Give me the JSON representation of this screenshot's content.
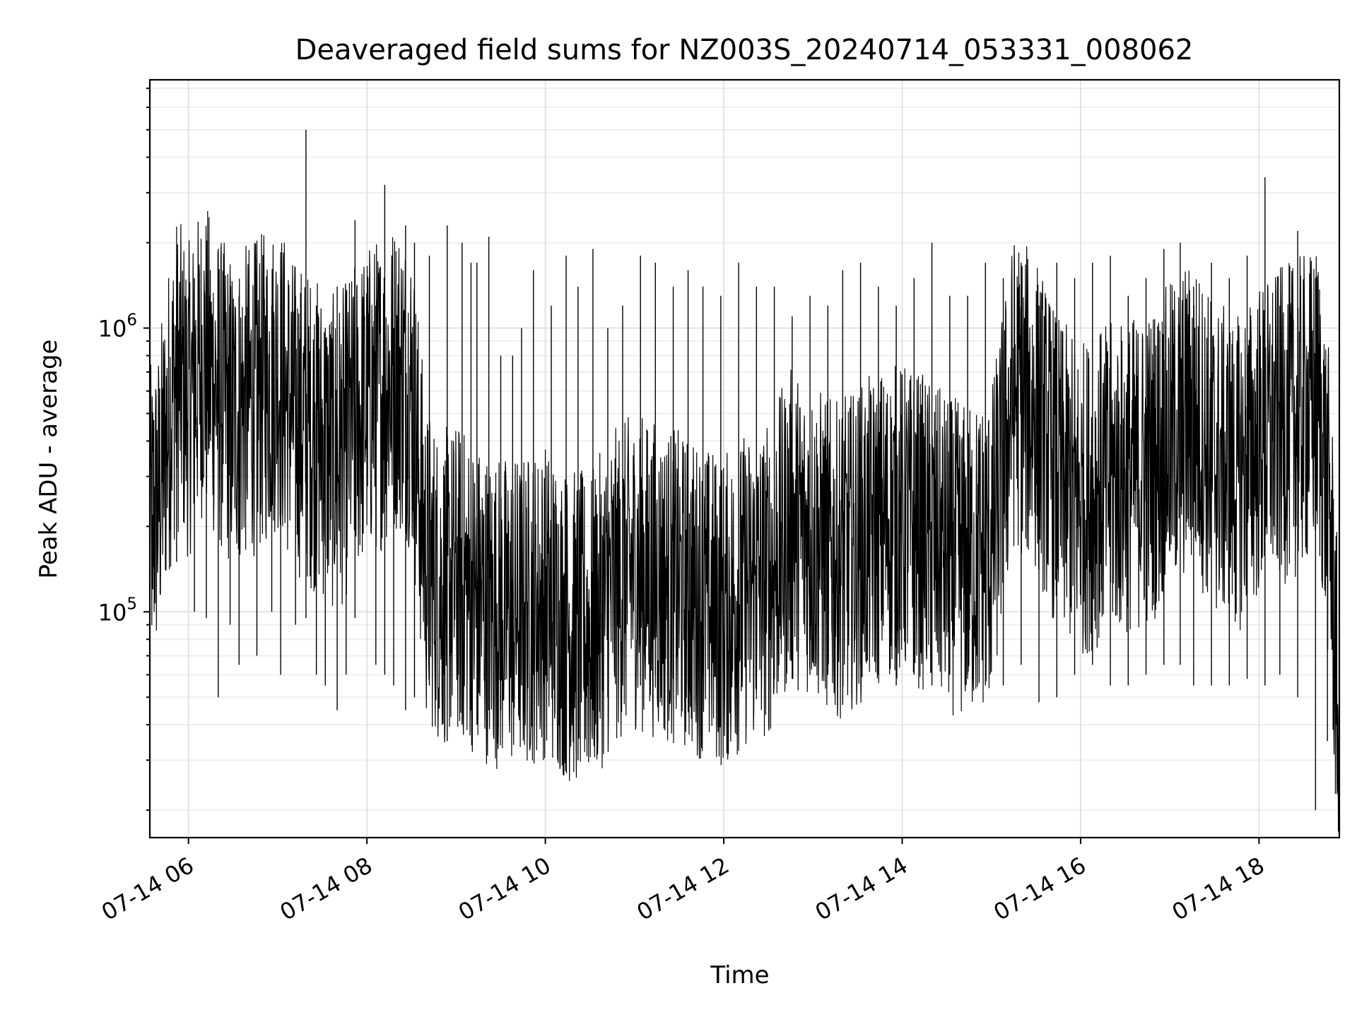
{
  "chart_data": {
    "type": "line",
    "title": "Deaveraged field sums for NZ003S_20240714_053331_008062",
    "xlabel": "Time",
    "ylabel": "Peak ADU - average",
    "y_scale": "log",
    "ylim": [
      16000,
      7500000
    ],
    "xlim": [
      "2024-07-14 05:34",
      "2024-07-14 18:54"
    ],
    "grid": true,
    "line_color": "#000000",
    "x_ticks": [
      {
        "value": "2024-07-14 06:00",
        "label": "07-14 06"
      },
      {
        "value": "2024-07-14 08:00",
        "label": "07-14 08"
      },
      {
        "value": "2024-07-14 10:00",
        "label": "07-14 10"
      },
      {
        "value": "2024-07-14 12:00",
        "label": "07-14 12"
      },
      {
        "value": "2024-07-14 14:00",
        "label": "07-14 14"
      },
      {
        "value": "2024-07-14 16:00",
        "label": "07-14 16"
      },
      {
        "value": "2024-07-14 18:00",
        "label": "07-14 18"
      }
    ],
    "y_ticks": [
      {
        "value": 100000,
        "base": "10",
        "exp": "5"
      },
      {
        "value": 1000000,
        "base": "10",
        "exp": "6"
      }
    ],
    "series": [
      {
        "x": [
          "2024-07-14 05:34",
          "2024-07-14 05:40",
          "2024-07-14 05:46",
          "2024-07-14 05:52",
          "2024-07-14 06:00",
          "2024-07-14 06:10",
          "2024-07-14 06:20",
          "2024-07-14 06:30",
          "2024-07-14 06:40",
          "2024-07-14 06:50",
          "2024-07-14 07:00",
          "2024-07-14 07:10",
          "2024-07-14 07:20",
          "2024-07-14 07:30",
          "2024-07-14 07:40",
          "2024-07-14 07:50",
          "2024-07-14 08:00",
          "2024-07-14 08:10",
          "2024-07-14 08:20",
          "2024-07-14 08:30",
          "2024-07-14 08:40",
          "2024-07-14 08:50",
          "2024-07-14 09:00",
          "2024-07-14 09:15",
          "2024-07-14 09:30",
          "2024-07-14 09:45",
          "2024-07-14 10:00",
          "2024-07-14 10:15",
          "2024-07-14 10:30",
          "2024-07-14 10:45",
          "2024-07-14 11:00",
          "2024-07-14 11:15",
          "2024-07-14 11:30",
          "2024-07-14 11:45",
          "2024-07-14 12:00",
          "2024-07-14 12:15",
          "2024-07-14 12:30",
          "2024-07-14 12:45",
          "2024-07-14 13:00",
          "2024-07-14 13:15",
          "2024-07-14 13:30",
          "2024-07-14 13:45",
          "2024-07-14 14:00",
          "2024-07-14 14:15",
          "2024-07-14 14:30",
          "2024-07-14 14:45",
          "2024-07-14 15:00",
          "2024-07-14 15:15",
          "2024-07-14 15:30",
          "2024-07-14 15:45",
          "2024-07-14 16:00",
          "2024-07-14 16:15",
          "2024-07-14 16:30",
          "2024-07-14 16:45",
          "2024-07-14 17:00",
          "2024-07-14 17:15",
          "2024-07-14 17:30",
          "2024-07-14 17:45",
          "2024-07-14 18:00",
          "2024-07-14 18:15",
          "2024-07-14 18:30",
          "2024-07-14 18:40",
          "2024-07-14 18:48",
          "2024-07-14 18:54"
        ],
        "y": [
          200000,
          250000,
          450000,
          700000,
          550000,
          800000,
          600000,
          500000,
          550000,
          600000,
          700000,
          500000,
          450000,
          400000,
          350000,
          450000,
          550000,
          600000,
          700000,
          600000,
          150000,
          120000,
          130000,
          110000,
          100000,
          100000,
          110000,
          90000,
          85000,
          120000,
          140000,
          130000,
          120000,
          110000,
          100000,
          120000,
          130000,
          200000,
          180000,
          150000,
          170000,
          200000,
          210000,
          190000,
          160000,
          150000,
          170000,
          600000,
          500000,
          300000,
          250000,
          280000,
          300000,
          320000,
          400000,
          500000,
          350000,
          300000,
          400000,
          450000,
          500000,
          550000,
          200000,
          30000
        ],
        "x_spikes": [
          "2024-07-14 05:36",
          "2024-07-14 05:52",
          "2024-07-14 06:04",
          "2024-07-14 06:12",
          "2024-07-14 06:20",
          "2024-07-14 06:28",
          "2024-07-14 06:34",
          "2024-07-14 06:46",
          "2024-07-14 06:56",
          "2024-07-14 07:02",
          "2024-07-14 07:12",
          "2024-07-14 07:19",
          "2024-07-14 07:26",
          "2024-07-14 07:32",
          "2024-07-14 07:40",
          "2024-07-14 07:46",
          "2024-07-14 07:52",
          "2024-07-14 08:06",
          "2024-07-14 08:12",
          "2024-07-14 08:18",
          "2024-07-14 08:26",
          "2024-07-14 08:32",
          "2024-07-14 08:42",
          "2024-07-14 08:54",
          "2024-07-14 09:04",
          "2024-07-14 09:10",
          "2024-07-14 09:14",
          "2024-07-14 09:22",
          "2024-07-14 09:30",
          "2024-07-14 09:38",
          "2024-07-14 09:44",
          "2024-07-14 09:52",
          "2024-07-14 10:04",
          "2024-07-14 10:14",
          "2024-07-14 10:22",
          "2024-07-14 10:32",
          "2024-07-14 10:42",
          "2024-07-14 10:52",
          "2024-07-14 11:04",
          "2024-07-14 11:14",
          "2024-07-14 11:26",
          "2024-07-14 11:36",
          "2024-07-14 11:46",
          "2024-07-14 11:58",
          "2024-07-14 12:10",
          "2024-07-14 12:22",
          "2024-07-14 12:34",
          "2024-07-14 12:46",
          "2024-07-14 12:58",
          "2024-07-14 13:10",
          "2024-07-14 13:20",
          "2024-07-14 13:32",
          "2024-07-14 13:44",
          "2024-07-14 13:56",
          "2024-07-14 14:08",
          "2024-07-14 14:20",
          "2024-07-14 14:32",
          "2024-07-14 14:44",
          "2024-07-14 14:56",
          "2024-07-14 15:08",
          "2024-07-14 15:20",
          "2024-07-14 15:32",
          "2024-07-14 15:44",
          "2024-07-14 15:56",
          "2024-07-14 16:08",
          "2024-07-14 16:20",
          "2024-07-14 16:32",
          "2024-07-14 16:44",
          "2024-07-14 16:56",
          "2024-07-14 17:07",
          "2024-07-14 17:16",
          "2024-07-14 17:28",
          "2024-07-14 17:40",
          "2024-07-14 17:52",
          "2024-07-14 18:04",
          "2024-07-14 18:14",
          "2024-07-14 18:26",
          "2024-07-14 18:38",
          "2024-07-14 18:46",
          "2024-07-14 18:50",
          "2024-07-14 18:52",
          "2024-07-14 18:54"
        ],
        "y_spike_high": [
          220000,
          1000000,
          1500000,
          1100000,
          1900000,
          1500000,
          1300000,
          1200000,
          1200000,
          1500000,
          1300000,
          5000000,
          1200000,
          1000000,
          1400000,
          1300000,
          2400000,
          1200000,
          3200000,
          1000000,
          2300000,
          2000000,
          1800000,
          2300000,
          2000000,
          1700000,
          1700000,
          2100000,
          800000,
          800000,
          1000000,
          1600000,
          1200000,
          1800000,
          1400000,
          1900000,
          1000000,
          1200000,
          1800000,
          1700000,
          1400000,
          1600000,
          1400000,
          1300000,
          1700000,
          1400000,
          1400000,
          1100000,
          1300000,
          1200000,
          1600000,
          1700000,
          1400000,
          1200000,
          1500000,
          2000000,
          1300000,
          1300000,
          1700000,
          1500000,
          1700000,
          1200000,
          1700000,
          1500000,
          1700000,
          1800000,
          1300000,
          1500000,
          1900000,
          2000000,
          1400000,
          1700000,
          1500000,
          1800000,
          3400000,
          1200000,
          2200000,
          1500000,
          500000,
          250000,
          150000,
          100000
        ],
        "y_spike_low": [
          120000,
          150000,
          100000,
          95000,
          50000,
          90000,
          65000,
          70000,
          100000,
          60000,
          90000,
          95000,
          60000,
          55000,
          45000,
          60000,
          95000,
          65000,
          60000,
          55000,
          45000,
          50000,
          55000,
          35000,
          40000,
          45000,
          40000,
          45000,
          45000,
          48000,
          55000,
          60000,
          65000,
          55000,
          30000,
          45000,
          50000,
          55000,
          55000,
          60000,
          58000,
          55000,
          60000,
          62000,
          65000,
          60000,
          58000,
          58000,
          60000,
          60000,
          47000,
          65000,
          60000,
          55000,
          60000,
          55000,
          60000,
          60000,
          55000,
          55000,
          65000,
          48000,
          50000,
          60000,
          65000,
          55000,
          55000,
          60000,
          65000,
          65000,
          55000,
          55000,
          55000,
          58000,
          55000,
          60000,
          50000,
          20000,
          35000,
          50000,
          40000,
          17000
        ]
      }
    ]
  }
}
